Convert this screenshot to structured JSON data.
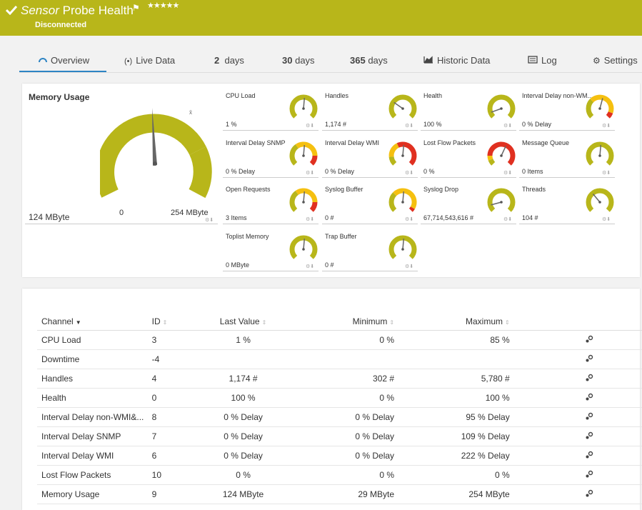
{
  "header": {
    "title_prefix": "Sensor",
    "title_rest": "Probe Health",
    "stars": "★★★★★",
    "status": "Disconnected",
    "bg_color": "#b8b61a"
  },
  "tabs": [
    {
      "label": "Overview",
      "icon": "gauge-icon"
    },
    {
      "label": "Live Data",
      "icon": "broadcast-icon"
    },
    {
      "num": "2",
      "label": "days"
    },
    {
      "num": "30",
      "label": "days"
    },
    {
      "num": "365",
      "label": "days"
    },
    {
      "label": "Historic Data",
      "icon": "area-chart-icon"
    },
    {
      "label": "Log",
      "icon": "log-icon"
    },
    {
      "label": "Settings",
      "icon": "gear-icon"
    }
  ],
  "big_gauge": {
    "title": "Memory Usage",
    "value": "124 MByte",
    "min": "0",
    "max": "254 MByte"
  },
  "gauges": [
    {
      "name": "CPU Load",
      "value": "1 %"
    },
    {
      "name": "Handles",
      "value": "1,174 #"
    },
    {
      "name": "Health",
      "value": "100 %"
    },
    {
      "name": "Interval Delay non-WM...",
      "value": "0 % Delay"
    },
    {
      "name": "Interval Delay SNMP",
      "value": "0 % Delay"
    },
    {
      "name": "Interval Delay WMI",
      "value": "0 % Delay"
    },
    {
      "name": "Lost Flow Packets",
      "value": "0 %"
    },
    {
      "name": "Message Queue",
      "value": "0 Items"
    },
    {
      "name": "Open Requests",
      "value": "3 Items"
    },
    {
      "name": "Syslog Buffer",
      "value": "0 #"
    },
    {
      "name": "Syslog Drop",
      "value": "67,714,543,616 #"
    },
    {
      "name": "Threads",
      "value": "104 #"
    },
    {
      "name": "Toplist Memory",
      "value": "0 MByte"
    },
    {
      "name": "Trap Buffer",
      "value": "0 #"
    }
  ],
  "table": {
    "headers": [
      "Channel",
      "ID",
      "Last Value",
      "Minimum",
      "Maximum"
    ],
    "rows": [
      [
        "CPU Load",
        "3",
        "1 %",
        "0 %",
        "85 %"
      ],
      [
        "Downtime",
        "-4",
        "",
        "",
        ""
      ],
      [
        "Handles",
        "4",
        "1,174 #",
        "302 #",
        "5,780 #"
      ],
      [
        "Health",
        "0",
        "100 %",
        "0 %",
        "100 %"
      ],
      [
        "Interval Delay non-WMI&...",
        "8",
        "0 % Delay",
        "0 % Delay",
        "95 % Delay"
      ],
      [
        "Interval Delay SNMP",
        "7",
        "0 % Delay",
        "0 % Delay",
        "109 % Delay"
      ],
      [
        "Interval Delay WMI",
        "6",
        "0 % Delay",
        "0 % Delay",
        "222 % Delay"
      ],
      [
        "Lost Flow Packets",
        "10",
        "0 %",
        "0 %",
        "0 %"
      ],
      [
        "Memory Usage",
        "9",
        "124 MByte",
        "29 MByte",
        "254 MByte"
      ]
    ]
  }
}
